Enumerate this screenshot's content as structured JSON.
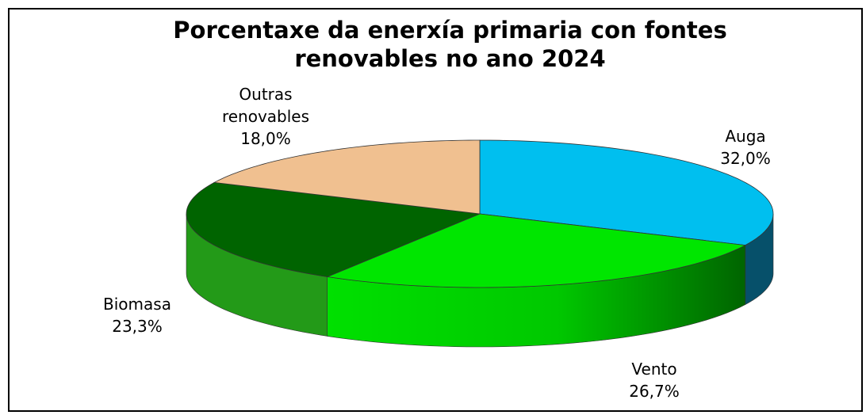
{
  "chart_data": {
    "type": "pie",
    "title": "Porcentaxe da enerxía primaria con fontes renovables no ano 2024",
    "categories": [
      "Auga",
      "Vento",
      "Biomasa",
      "Outras renovables"
    ],
    "values": [
      32.0,
      26.7,
      23.3,
      18.0
    ],
    "value_labels": [
      "32,0%",
      "26,7%",
      "23,3%",
      "18,0%"
    ],
    "colors": [
      "#00bfef",
      "#00e600",
      "#006400",
      "#f0c090"
    ]
  }
}
